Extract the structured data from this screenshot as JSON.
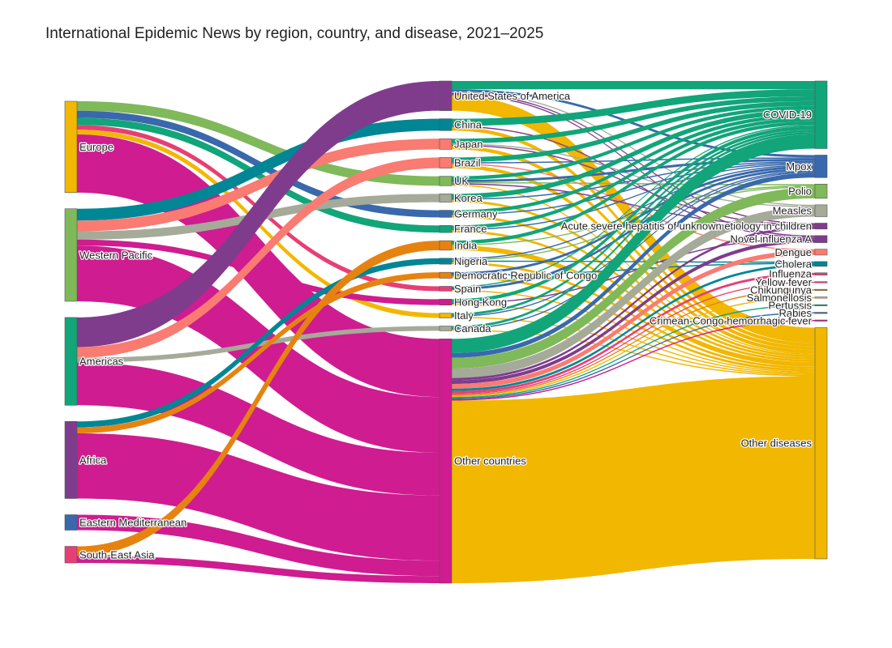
{
  "chart_data": {
    "type": "sankey",
    "title": "International Epidemic News by region, country, and disease, 2021–2025",
    "colors": {
      "Europe": "#f2b701",
      "Western Pacific": "#7fb95a",
      "Americas": "#11a579",
      "Africa": "#7f3c8d",
      "Eastern Mediterranean": "#3969ac",
      "South-East Asia": "#e73f74",
      "United States of America": "#7f3c8d",
      "China": "#008695",
      "Japan": "#f97b72",
      "Brazil": "#f97b72",
      "UK": "#7fb95a",
      "Korea": "#a5aa99",
      "Germany": "#3969ac",
      "France": "#11a579",
      "India": "#e68310",
      "Nigeria": "#008695",
      "Democratic Republic of Congo": "#e68310",
      "Spain": "#e73f74",
      "Hong Kong": "#cf1c90",
      "Italy": "#f2b701",
      "Canada": "#a5aa99",
      "Other countries": "#cf1c90",
      "COVID-19": "#11a579",
      "Mpox": "#3969ac",
      "Polio": "#7fb95a",
      "Measles": "#a5aa99",
      "Acute severe hepatitis of unknown etiology in children": "#7f3c8d",
      "Novel influenza A": "#7f3c8d",
      "Dengue": "#f97b72",
      "Cholera": "#008695",
      "Influenza": "#e73f74",
      "Yellow fever": "#e73f74",
      "Chikungunya": "#e68310",
      "Salmonellosis": "#f2b701",
      "Pertussis": "#11a579",
      "Rabies": "#3969ac",
      "Crimean-Congo hemorrhagic fever": "#cf1c90",
      "Other diseases": "#f2b701"
    },
    "nodes": [
      {
        "name": "Europe",
        "column": 0
      },
      {
        "name": "Western Pacific",
        "column": 0
      },
      {
        "name": "Americas",
        "column": 0
      },
      {
        "name": "Africa",
        "column": 0
      },
      {
        "name": "Eastern Mediterranean",
        "column": 0
      },
      {
        "name": "South-East Asia",
        "column": 0
      },
      {
        "name": "United States of America",
        "column": 1
      },
      {
        "name": "China",
        "column": 1
      },
      {
        "name": "Japan",
        "column": 1
      },
      {
        "name": "Brazil",
        "column": 1
      },
      {
        "name": "UK",
        "column": 1
      },
      {
        "name": "Korea",
        "column": 1
      },
      {
        "name": "Germany",
        "column": 1
      },
      {
        "name": "France",
        "column": 1
      },
      {
        "name": "India",
        "column": 1
      },
      {
        "name": "Nigeria",
        "column": 1
      },
      {
        "name": "Democratic Republic of Congo",
        "column": 1
      },
      {
        "name": "Spain",
        "column": 1
      },
      {
        "name": "Hong Kong",
        "column": 1
      },
      {
        "name": "Italy",
        "column": 1
      },
      {
        "name": "Canada",
        "column": 1
      },
      {
        "name": "Other countries",
        "column": 1
      },
      {
        "name": "COVID-19",
        "column": 2
      },
      {
        "name": "Mpox",
        "column": 2
      },
      {
        "name": "Polio",
        "column": 2
      },
      {
        "name": "Measles",
        "column": 2
      },
      {
        "name": "Acute severe hepatitis of unknown etiology in children",
        "column": 2
      },
      {
        "name": "Novel influenza A",
        "column": 2
      },
      {
        "name": "Dengue",
        "column": 2
      },
      {
        "name": "Cholera",
        "column": 2
      },
      {
        "name": "Influenza",
        "column": 2
      },
      {
        "name": "Yellow fever",
        "column": 2
      },
      {
        "name": "Chikungunya",
        "column": 2
      },
      {
        "name": "Salmonellosis",
        "column": 2
      },
      {
        "name": "Pertussis",
        "column": 2
      },
      {
        "name": "Rabies",
        "column": 2
      },
      {
        "name": "Crimean-Congo hemorrhagic fever",
        "column": 2
      },
      {
        "name": "Other diseases",
        "column": 2
      }
    ],
    "links": [
      {
        "source": "Europe",
        "target": "UK",
        "value": 8
      },
      {
        "source": "Europe",
        "target": "Germany",
        "value": 6
      },
      {
        "source": "Europe",
        "target": "France",
        "value": 6
      },
      {
        "source": "Europe",
        "target": "Spain",
        "value": 4
      },
      {
        "source": "Europe",
        "target": "Italy",
        "value": 4
      },
      {
        "source": "Europe",
        "target": "Other countries",
        "value": 49
      },
      {
        "source": "Western Pacific",
        "target": "China",
        "value": 10
      },
      {
        "source": "Western Pacific",
        "target": "Japan",
        "value": 9
      },
      {
        "source": "Western Pacific",
        "target": "Korea",
        "value": 7
      },
      {
        "source": "Western Pacific",
        "target": "Hong Kong",
        "value": 5
      },
      {
        "source": "Western Pacific",
        "target": "Other countries",
        "value": 47
      },
      {
        "source": "Americas",
        "target": "United States of America",
        "value": 25
      },
      {
        "source": "Americas",
        "target": "Brazil",
        "value": 9
      },
      {
        "source": "Americas",
        "target": "Canada",
        "value": 4
      },
      {
        "source": "Americas",
        "target": "Other countries",
        "value": 36
      },
      {
        "source": "Africa",
        "target": "Nigeria",
        "value": 5
      },
      {
        "source": "Africa",
        "target": "Democratic Republic of Congo",
        "value": 5
      },
      {
        "source": "Africa",
        "target": "Other countries",
        "value": 55
      },
      {
        "source": "Eastern Mediterranean",
        "target": "Other countries",
        "value": 13
      },
      {
        "source": "South-East Asia",
        "target": "India",
        "value": 8
      },
      {
        "source": "South-East Asia",
        "target": "Other countries",
        "value": 6
      },
      {
        "source": "United States of America",
        "target": "COVID-19",
        "value": 7
      },
      {
        "source": "United States of America",
        "target": "Mpox",
        "value": 2
      },
      {
        "source": "United States of America",
        "target": "Acute severe hepatitis of unknown etiology in children",
        "value": 1
      },
      {
        "source": "United States of America",
        "target": "Novel influenza A",
        "value": 1
      },
      {
        "source": "United States of America",
        "target": "Measles",
        "value": 1
      },
      {
        "source": "United States of America",
        "target": "Other diseases",
        "value": 13
      },
      {
        "source": "China",
        "target": "COVID-19",
        "value": 6
      },
      {
        "source": "China",
        "target": "Novel influenza A",
        "value": 1
      },
      {
        "source": "China",
        "target": "Other diseases",
        "value": 3
      },
      {
        "source": "Japan",
        "target": "COVID-19",
        "value": 4
      },
      {
        "source": "Japan",
        "target": "Acute severe hepatitis of unknown etiology in children",
        "value": 1
      },
      {
        "source": "Japan",
        "target": "Measles",
        "value": 1
      },
      {
        "source": "Japan",
        "target": "Other diseases",
        "value": 3
      },
      {
        "source": "Brazil",
        "target": "COVID-19",
        "value": 4
      },
      {
        "source": "Brazil",
        "target": "Mpox",
        "value": 1
      },
      {
        "source": "Brazil",
        "target": "Dengue",
        "value": 1
      },
      {
        "source": "Brazil",
        "target": "Other diseases",
        "value": 3
      },
      {
        "source": "UK",
        "target": "COVID-19",
        "value": 3
      },
      {
        "source": "UK",
        "target": "Mpox",
        "value": 2
      },
      {
        "source": "UK",
        "target": "Polio",
        "value": 1
      },
      {
        "source": "UK",
        "target": "Acute severe hepatitis of unknown etiology in children",
        "value": 1
      },
      {
        "source": "UK",
        "target": "Other diseases",
        "value": 1
      },
      {
        "source": "Korea",
        "target": "COVID-19",
        "value": 4
      },
      {
        "source": "Korea",
        "target": "Mpox",
        "value": 1
      },
      {
        "source": "Korea",
        "target": "Other diseases",
        "value": 2
      },
      {
        "source": "Germany",
        "target": "COVID-19",
        "value": 3
      },
      {
        "source": "Germany",
        "target": "Mpox",
        "value": 1
      },
      {
        "source": "Germany",
        "target": "Other diseases",
        "value": 2
      },
      {
        "source": "France",
        "target": "COVID-19",
        "value": 3
      },
      {
        "source": "France",
        "target": "Mpox",
        "value": 1
      },
      {
        "source": "France",
        "target": "Other diseases",
        "value": 2
      },
      {
        "source": "India",
        "target": "COVID-19",
        "value": 3
      },
      {
        "source": "India",
        "target": "Polio",
        "value": 1
      },
      {
        "source": "India",
        "target": "Other diseases",
        "value": 4
      },
      {
        "source": "Nigeria",
        "target": "Polio",
        "value": 1
      },
      {
        "source": "Nigeria",
        "target": "Cholera",
        "value": 1
      },
      {
        "source": "Nigeria",
        "target": "Mpox",
        "value": 1
      },
      {
        "source": "Nigeria",
        "target": "Other diseases",
        "value": 2
      },
      {
        "source": "Democratic Republic of Congo",
        "target": "Mpox",
        "value": 2
      },
      {
        "source": "Democratic Republic of Congo",
        "target": "Cholera",
        "value": 1
      },
      {
        "source": "Democratic Republic of Congo",
        "target": "Other diseases",
        "value": 2
      },
      {
        "source": "Spain",
        "target": "Mpox",
        "value": 2
      },
      {
        "source": "Spain",
        "target": "COVID-19",
        "value": 1
      },
      {
        "source": "Spain",
        "target": "Other diseases",
        "value": 1
      },
      {
        "source": "Hong Kong",
        "target": "COVID-19",
        "value": 3
      },
      {
        "source": "Hong Kong",
        "target": "Novel influenza A",
        "value": 1
      },
      {
        "source": "Hong Kong",
        "target": "Other diseases",
        "value": 1
      },
      {
        "source": "Italy",
        "target": "COVID-19",
        "value": 2
      },
      {
        "source": "Italy",
        "target": "Mpox",
        "value": 1
      },
      {
        "source": "Italy",
        "target": "Other diseases",
        "value": 1
      },
      {
        "source": "Canada",
        "target": "COVID-19",
        "value": 2
      },
      {
        "source": "Canada",
        "target": "Mpox",
        "value": 1
      },
      {
        "source": "Canada",
        "target": "Other diseases",
        "value": 1
      },
      {
        "source": "Other countries",
        "target": "COVID-19",
        "value": 12
      },
      {
        "source": "Other countries",
        "target": "Mpox",
        "value": 4
      },
      {
        "source": "Other countries",
        "target": "Polio",
        "value": 9
      },
      {
        "source": "Other countries",
        "target": "Measles",
        "value": 8
      },
      {
        "source": "Other countries",
        "target": "Acute severe hepatitis of unknown etiology in children",
        "value": 2
      },
      {
        "source": "Other countries",
        "target": "Novel influenza A",
        "value": 3
      },
      {
        "source": "Other countries",
        "target": "Dengue",
        "value": 4
      },
      {
        "source": "Other countries",
        "target": "Cholera",
        "value": 2
      },
      {
        "source": "Other countries",
        "target": "Influenza",
        "value": 2
      },
      {
        "source": "Other countries",
        "target": "Yellow fever",
        "value": 1
      },
      {
        "source": "Other countries",
        "target": "Chikungunya",
        "value": 1
      },
      {
        "source": "Other countries",
        "target": "Salmonellosis",
        "value": 1
      },
      {
        "source": "Other countries",
        "target": "Pertussis",
        "value": 1
      },
      {
        "source": "Other countries",
        "target": "Rabies",
        "value": 1
      },
      {
        "source": "Other countries",
        "target": "Crimean-Congo hemorrhagic fever",
        "value": 1
      },
      {
        "source": "Other countries",
        "target": "Other diseases",
        "value": 154
      }
    ]
  }
}
